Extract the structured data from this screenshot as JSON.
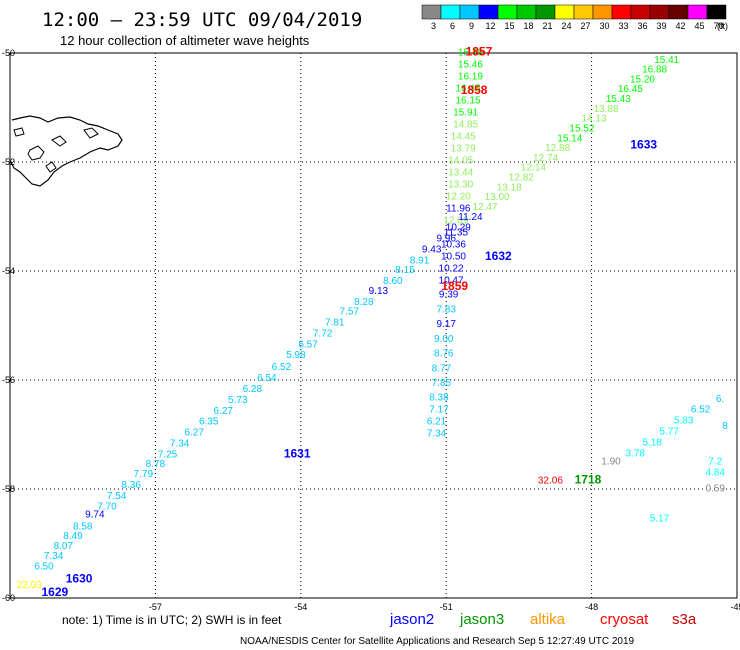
{
  "header": {
    "title": "12:00 – 23:59 UTC 09/04/2019",
    "subtitle": "12 hour collection of altimeter wave heights"
  },
  "legend": {
    "unit": "(ft)",
    "bins": [
      {
        "label": "3",
        "color": "#888888"
      },
      {
        "label": "6",
        "color": "#00ffff"
      },
      {
        "label": "9",
        "color": "#00c8ff"
      },
      {
        "label": "12",
        "color": "#0000ff"
      },
      {
        "label": "15",
        "color": "#00ff00"
      },
      {
        "label": "18",
        "color": "#00c800"
      },
      {
        "label": "21",
        "color": "#009600"
      },
      {
        "label": "24",
        "color": "#ffff00"
      },
      {
        "label": "27",
        "color": "#ffc800"
      },
      {
        "label": "30",
        "color": "#ff9600"
      },
      {
        "label": "33",
        "color": "#ff0000"
      },
      {
        "label": "36",
        "color": "#c80000"
      },
      {
        "label": "39",
        "color": "#960000"
      },
      {
        "label": "42",
        "color": "#640000"
      },
      {
        "label": "45",
        "color": "#ff00ff"
      },
      {
        "label": "70",
        "color": "#000000"
      }
    ]
  },
  "footer": {
    "note": "note:  1) Time is in UTC; 2) SWH is in feet",
    "credit": "NOAA/NESDIS Center for Satellite Applications and Research    Sep  5 12:27:49 UTC 2019",
    "satellites": [
      {
        "name": "jason2",
        "color": "#0000ff"
      },
      {
        "name": "jason3",
        "color": "#009600"
      },
      {
        "name": "altika",
        "color": "#ff9600"
      },
      {
        "name": "cryosat",
        "color": "#ff0000"
      },
      {
        "name": "s3a",
        "color": "#c80000"
      }
    ]
  },
  "chart_data": {
    "type": "scatter",
    "title": "12:00 – 23:59 UTC 09/04/2019",
    "subtitle": "12 hour collection of altimeter wave heights",
    "xlim": [
      -60,
      -45
    ],
    "ylim": [
      -60,
      -50
    ],
    "x_ticks": [
      -57,
      -54,
      -51,
      -48,
      -45
    ],
    "y_ticks": [
      -50,
      -52,
      -54,
      -56,
      -58,
      -60
    ],
    "grid": true,
    "land_label": "",
    "series": [
      {
        "name": "track-a",
        "points": [
          {
            "lon": -50.5,
            "lat": -50.05,
            "v": "15.40",
            "c": "#00ff00"
          },
          {
            "lon": -50.5,
            "lat": -50.27,
            "v": "15.46",
            "c": "#00ff00"
          },
          {
            "lon": -50.5,
            "lat": -50.49,
            "v": "16.19",
            "c": "#00ff00"
          },
          {
            "lon": -50.55,
            "lat": -50.71,
            "v": "16.45",
            "c": "#00ff00"
          },
          {
            "lon": -50.55,
            "lat": -50.93,
            "v": "16.15",
            "c": "#00ff00"
          },
          {
            "lon": -50.6,
            "lat": -51.15,
            "v": "15.91",
            "c": "#00ff00"
          },
          {
            "lon": -50.6,
            "lat": -51.37,
            "v": "14.85",
            "c": "#90ee60"
          },
          {
            "lon": -50.65,
            "lat": -51.59,
            "v": "14.45",
            "c": "#90ee60"
          },
          {
            "lon": -50.65,
            "lat": -51.81,
            "v": "13.79",
            "c": "#90ee60"
          },
          {
            "lon": -50.7,
            "lat": -52.03,
            "v": "14.05",
            "c": "#90ee60"
          },
          {
            "lon": -50.7,
            "lat": -52.25,
            "v": "13.44",
            "c": "#90ee60"
          },
          {
            "lon": -50.7,
            "lat": -52.47,
            "v": "13.30",
            "c": "#90ee60"
          },
          {
            "lon": -50.75,
            "lat": -52.69,
            "v": "12.20",
            "c": "#90ee60"
          },
          {
            "lon": -50.75,
            "lat": -52.91,
            "v": "11.96",
            "c": "#0000ff"
          },
          {
            "lon": -50.8,
            "lat": -53.13,
            "v": "12.09",
            "c": "#90ee60"
          },
          {
            "lon": -50.8,
            "lat": -53.35,
            "v": "11.35",
            "c": "#0000ff"
          },
          {
            "lon": -50.85,
            "lat": -53.57,
            "v": "10.36",
            "c": "#0000ff"
          },
          {
            "lon": -50.85,
            "lat": -53.79,
            "v": "10.50",
            "c": "#0000ff"
          },
          {
            "lon": -50.9,
            "lat": -54.01,
            "v": "10.22",
            "c": "#0000ff"
          },
          {
            "lon": -50.9,
            "lat": -54.23,
            "v": "10.47",
            "c": "#0000ff"
          },
          {
            "lon": -50.95,
            "lat": -54.49,
            "v": "9.39",
            "c": "#0000ff"
          },
          {
            "lon": -51.0,
            "lat": -54.76,
            "v": "7.83",
            "c": "#00c8ff"
          },
          {
            "lon": -51.0,
            "lat": -55.03,
            "v": "9.17",
            "c": "#0000ff"
          },
          {
            "lon": -51.05,
            "lat": -55.3,
            "v": "9.00",
            "c": "#00c8ff"
          },
          {
            "lon": -51.05,
            "lat": -55.57,
            "v": "8.76",
            "c": "#00c8ff"
          },
          {
            "lon": -51.1,
            "lat": -55.84,
            "v": "8.77",
            "c": "#00c8ff"
          },
          {
            "lon": -51.1,
            "lat": -56.11,
            "v": "7.85",
            "c": "#00c8ff"
          },
          {
            "lon": -51.15,
            "lat": -56.38,
            "v": "8.38",
            "c": "#00c8ff"
          },
          {
            "lon": -51.15,
            "lat": -56.6,
            "v": "7.17",
            "c": "#00c8ff"
          },
          {
            "lon": -51.2,
            "lat": -56.82,
            "v": "6.21",
            "c": "#00c8ff"
          },
          {
            "lon": -51.2,
            "lat": -57.04,
            "v": "7.34",
            "c": "#00c8ff"
          }
        ]
      },
      {
        "name": "track-b",
        "points": [
          {
            "lon": -59.6,
            "lat": -59.82,
            "v": "22.03",
            "c": "#ffff00"
          },
          {
            "lon": -59.3,
            "lat": -59.48,
            "v": "6.50",
            "c": "#00c8ff"
          },
          {
            "lon": -59.1,
            "lat": -59.28,
            "v": "7.34",
            "c": "#00c8ff"
          },
          {
            "lon": -58.9,
            "lat": -59.1,
            "v": "8.07",
            "c": "#00c8ff"
          },
          {
            "lon": -58.7,
            "lat": -58.92,
            "v": "8.49",
            "c": "#00c8ff"
          },
          {
            "lon": -58.5,
            "lat": -58.74,
            "v": "8.58",
            "c": "#00c8ff"
          },
          {
            "lon": -58.25,
            "lat": -58.52,
            "v": "9.74",
            "c": "#0000ff"
          },
          {
            "lon": -58.0,
            "lat": -58.38,
            "v": "7.70",
            "c": "#00c8ff"
          },
          {
            "lon": -57.8,
            "lat": -58.18,
            "v": "7.54",
            "c": "#00c8ff"
          },
          {
            "lon": -57.5,
            "lat": -57.98,
            "v": "8.36",
            "c": "#00c8ff"
          },
          {
            "lon": -57.25,
            "lat": -57.78,
            "v": "7.79",
            "c": "#00c8ff"
          },
          {
            "lon": -57.0,
            "lat": -57.6,
            "v": "8.78",
            "c": "#00c8ff"
          },
          {
            "lon": -56.75,
            "lat": -57.42,
            "v": "7.25",
            "c": "#00c8ff"
          },
          {
            "lon": -56.5,
            "lat": -57.22,
            "v": "7.34",
            "c": "#00c8ff"
          },
          {
            "lon": -56.2,
            "lat": -57.02,
            "v": "6.27",
            "c": "#00c8ff"
          },
          {
            "lon": -55.9,
            "lat": -56.82,
            "v": "6.35",
            "c": "#00c8ff"
          },
          {
            "lon": -55.6,
            "lat": -56.62,
            "v": "6.27",
            "c": "#00c8ff"
          },
          {
            "lon": -55.3,
            "lat": -56.42,
            "v": "5.73",
            "c": "#00c8ff"
          },
          {
            "lon": -55.0,
            "lat": -56.22,
            "v": "6.28",
            "c": "#00c8ff"
          },
          {
            "lon": -54.7,
            "lat": -56.02,
            "v": "6.54",
            "c": "#00c8ff"
          },
          {
            "lon": -54.4,
            "lat": -55.82,
            "v": "6.52",
            "c": "#00c8ff"
          },
          {
            "lon": -54.1,
            "lat": -55.6,
            "v": "5.98",
            "c": "#00c8ff"
          },
          {
            "lon": -53.85,
            "lat": -55.4,
            "v": "6.57",
            "c": "#00c8ff"
          },
          {
            "lon": -53.55,
            "lat": -55.2,
            "v": "7.72",
            "c": "#00c8ff"
          },
          {
            "lon": -53.3,
            "lat": -55.0,
            "v": "7.81",
            "c": "#00c8ff"
          },
          {
            "lon": -53.0,
            "lat": -54.8,
            "v": "7.57",
            "c": "#00c8ff"
          },
          {
            "lon": -52.7,
            "lat": -54.62,
            "v": "8.28",
            "c": "#00c8ff"
          },
          {
            "lon": -52.4,
            "lat": -54.42,
            "v": "9.13",
            "c": "#0000ff"
          },
          {
            "lon": -52.1,
            "lat": -54.24,
            "v": "8.60",
            "c": "#00c8ff"
          },
          {
            "lon": -51.85,
            "lat": -54.04,
            "v": "8.15",
            "c": "#00c8ff"
          },
          {
            "lon": -51.55,
            "lat": -53.86,
            "v": "8.91",
            "c": "#00c8ff"
          },
          {
            "lon": -51.3,
            "lat": -53.66,
            "v": "9.43",
            "c": "#0000ff"
          },
          {
            "lon": -51.0,
            "lat": -53.46,
            "v": "9.96",
            "c": "#0000ff"
          },
          {
            "lon": -50.75,
            "lat": -53.26,
            "v": "10.29",
            "c": "#0000ff"
          },
          {
            "lon": -50.5,
            "lat": -53.06,
            "v": "11.24",
            "c": "#0000ff"
          },
          {
            "lon": -50.2,
            "lat": -52.88,
            "v": "12.47",
            "c": "#90ee60"
          },
          {
            "lon": -49.95,
            "lat": -52.7,
            "v": "13.00",
            "c": "#90ee60"
          },
          {
            "lon": -49.7,
            "lat": -52.52,
            "v": "13.18",
            "c": "#90ee60"
          },
          {
            "lon": -49.45,
            "lat": -52.34,
            "v": "12.82",
            "c": "#90ee60"
          },
          {
            "lon": -49.2,
            "lat": -52.16,
            "v": "12.14",
            "c": "#90ee60"
          },
          {
            "lon": -48.95,
            "lat": -51.98,
            "v": "12.74",
            "c": "#90ee60"
          },
          {
            "lon": -48.7,
            "lat": -51.8,
            "v": "12.88",
            "c": "#90ee60"
          },
          {
            "lon": -48.45,
            "lat": -51.62,
            "v": "15.14",
            "c": "#00ff00"
          },
          {
            "lon": -48.2,
            "lat": -51.44,
            "v": "15.52",
            "c": "#00ff00"
          },
          {
            "lon": -47.95,
            "lat": -51.26,
            "v": "14.13",
            "c": "#90ee60"
          },
          {
            "lon": -47.7,
            "lat": -51.08,
            "v": "13.88",
            "c": "#90ee60"
          },
          {
            "lon": -47.45,
            "lat": -50.9,
            "v": "15.43",
            "c": "#00ff00"
          },
          {
            "lon": -47.2,
            "lat": -50.72,
            "v": "16.45",
            "c": "#00ff00"
          },
          {
            "lon": -46.95,
            "lat": -50.54,
            "v": "15.20",
            "c": "#00ff00"
          },
          {
            "lon": -46.7,
            "lat": -50.36,
            "v": "16.88",
            "c": "#00ff00"
          },
          {
            "lon": -46.45,
            "lat": -50.18,
            "v": "15.41",
            "c": "#00ff00"
          },
          {
            "lon": -46.2,
            "lat": -50.0,
            "v": "16.35",
            "c": "#00ff00"
          },
          {
            "lon": -45.95,
            "lat": -49.82,
            "v": "15.83",
            "c": "#00ff00"
          },
          {
            "lon": -45.7,
            "lat": -49.64,
            "v": "17.15",
            "c": "#00c800"
          },
          {
            "lon": -45.45,
            "lat": -49.46,
            "v": "17.0",
            "c": "#00c800"
          },
          {
            "lon": -45.2,
            "lat": -49.28,
            "v": "17.",
            "c": "#00c800"
          }
        ]
      },
      {
        "name": "track-c",
        "points": [
          {
            "lon": -47.6,
            "lat": -57.55,
            "v": "1.90",
            "c": "#888888"
          },
          {
            "lon": -47.1,
            "lat": -57.4,
            "v": "3.78",
            "c": "#00ffff"
          },
          {
            "lon": -46.75,
            "lat": -57.2,
            "v": "5.18",
            "c": "#00ffff"
          },
          {
            "lon": -46.4,
            "lat": -57.0,
            "v": "5.77",
            "c": "#00ffff"
          },
          {
            "lon": -46.1,
            "lat": -56.8,
            "v": "5.83",
            "c": "#00ffff"
          },
          {
            "lon": -45.75,
            "lat": -56.6,
            "v": "6.52",
            "c": "#00c8ff"
          },
          {
            "lon": -45.35,
            "lat": -56.4,
            "v": "6.",
            "c": "#00c8ff"
          },
          {
            "lon": -45.25,
            "lat": -56.9,
            "v": "8",
            "c": "#00c8ff"
          },
          {
            "lon": -45.45,
            "lat": -57.55,
            "v": "7.2",
            "c": "#00ffff"
          },
          {
            "lon": -45.45,
            "lat": -57.75,
            "v": "4.84",
            "c": "#00ffff"
          },
          {
            "lon": -45.45,
            "lat": -58.05,
            "v": "0.59",
            "c": "#888888"
          },
          {
            "lon": -46.6,
            "lat": -58.6,
            "v": "5.17",
            "c": "#00ffff"
          },
          {
            "lon": -48.85,
            "lat": -57.9,
            "v": "32.06",
            "c": "#ff0000"
          }
        ]
      }
    ],
    "pass_labels": [
      {
        "text": "1857",
        "lon": -50.6,
        "lat": -50.05,
        "c": "#ff0000"
      },
      {
        "text": "1858",
        "lon": -50.7,
        "lat": -50.75,
        "c": "#ff0000"
      },
      {
        "text": "1859",
        "lon": -51.1,
        "lat": -54.35,
        "c": "#ff0000"
      },
      {
        "text": "1633",
        "lon": -47.2,
        "lat": -51.75,
        "c": "#0000ff"
      },
      {
        "text": "1632",
        "lon": -50.2,
        "lat": -53.8,
        "c": "#0000ff"
      },
      {
        "text": "1631",
        "lon": -54.35,
        "lat": -57.42,
        "c": "#0000ff"
      },
      {
        "text": "1630",
        "lon": -58.85,
        "lat": -59.72,
        "c": "#0000ff"
      },
      {
        "text": "1629",
        "lon": -59.35,
        "lat": -60.12,
        "c": "#0000ff"
      },
      {
        "text": "1718",
        "lon": -48.35,
        "lat": -57.9,
        "c": "#009600"
      }
    ]
  }
}
